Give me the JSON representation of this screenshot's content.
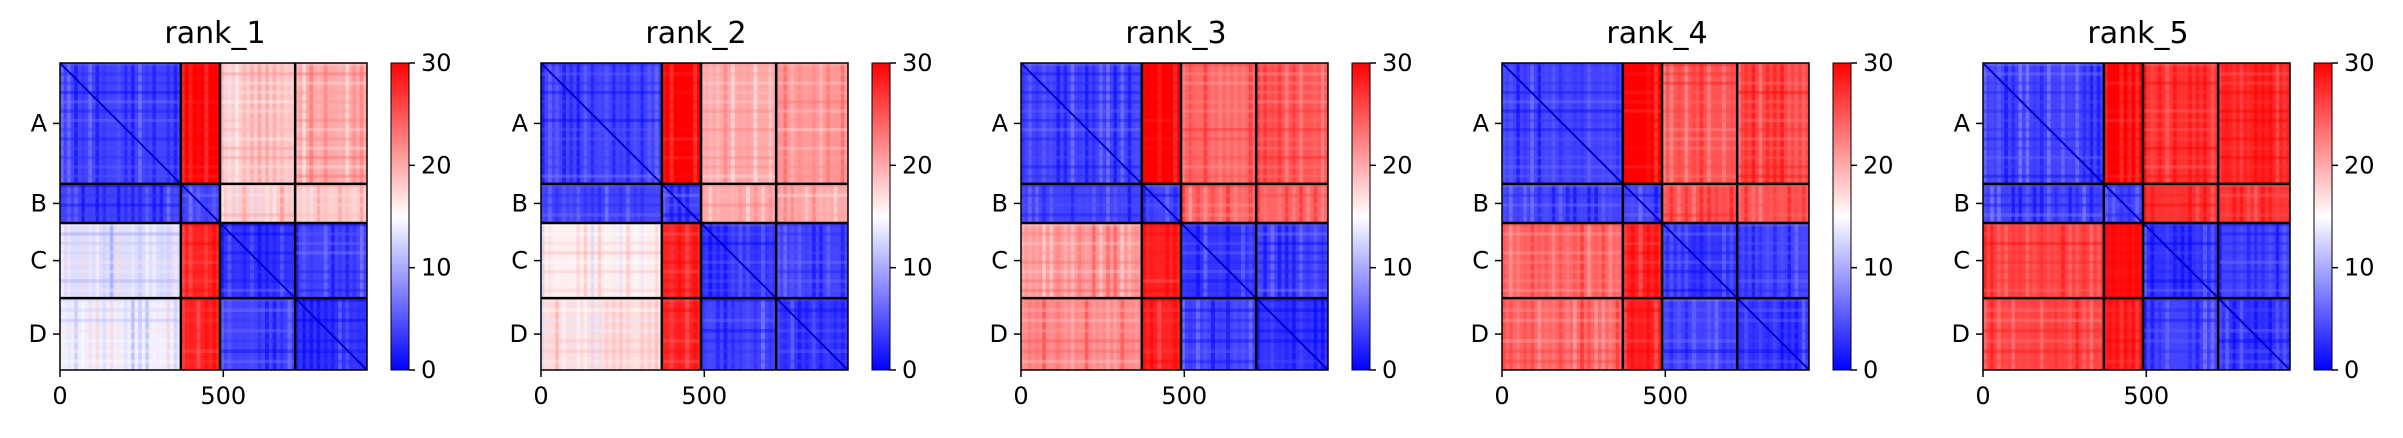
{
  "figure": {
    "panels": [
      {
        "title": "rank_1"
      },
      {
        "title": "rank_2"
      },
      {
        "title": "rank_3"
      },
      {
        "title": "rank_4"
      },
      {
        "title": "rank_5"
      }
    ]
  },
  "chart_data": [
    {
      "type": "heatmap",
      "title": "rank_1",
      "x_ticks": [
        0,
        500
      ],
      "y_tick_labels": [
        "A",
        "B",
        "C",
        "D"
      ],
      "chain_boundaries": [
        0,
        370,
        490,
        720,
        940
      ],
      "colorbar": {
        "range": [
          0,
          30
        ],
        "ticks": [
          0,
          10,
          20,
          30
        ],
        "colormap": "bwr"
      },
      "block_pae": [
        [
          4,
          30,
          18,
          20
        ],
        [
          4,
          4,
          18,
          18
        ],
        [
          13,
          28,
          3,
          4
        ],
        [
          14,
          28,
          4,
          3
        ]
      ],
      "xlim": [
        0,
        940
      ],
      "ylim": [
        940,
        0
      ]
    },
    {
      "type": "heatmap",
      "title": "rank_2",
      "x_ticks": [
        0,
        500
      ],
      "y_tick_labels": [
        "A",
        "B",
        "C",
        "D"
      ],
      "chain_boundaries": [
        0,
        370,
        490,
        720,
        940
      ],
      "colorbar": {
        "range": [
          0,
          30
        ],
        "ticks": [
          0,
          10,
          20,
          30
        ],
        "colormap": "bwr"
      },
      "block_pae": [
        [
          4,
          30,
          20,
          21
        ],
        [
          4,
          4,
          20,
          20
        ],
        [
          16,
          28,
          3,
          4
        ],
        [
          17,
          28,
          4,
          3
        ]
      ],
      "xlim": [
        0,
        940
      ],
      "ylim": [
        940,
        0
      ]
    },
    {
      "type": "heatmap",
      "title": "rank_3",
      "x_ticks": [
        0,
        500
      ],
      "y_tick_labels": [
        "A",
        "B",
        "C",
        "D"
      ],
      "chain_boundaries": [
        0,
        370,
        490,
        720,
        940
      ],
      "colorbar": {
        "range": [
          0,
          30
        ],
        "ticks": [
          0,
          10,
          20,
          30
        ],
        "colormap": "bwr"
      },
      "block_pae": [
        [
          4,
          30,
          24,
          25
        ],
        [
          4,
          4,
          24,
          24
        ],
        [
          21,
          28,
          3,
          4
        ],
        [
          22,
          28,
          4,
          3
        ]
      ],
      "xlim": [
        0,
        940
      ],
      "ylim": [
        940,
        0
      ]
    },
    {
      "type": "heatmap",
      "title": "rank_4",
      "x_ticks": [
        0,
        500
      ],
      "y_tick_labels": [
        "A",
        "B",
        "C",
        "D"
      ],
      "chain_boundaries": [
        0,
        370,
        490,
        720,
        940
      ],
      "colorbar": {
        "range": [
          0,
          30
        ],
        "ticks": [
          0,
          10,
          20,
          30
        ],
        "colormap": "bwr"
      },
      "block_pae": [
        [
          4,
          30,
          25,
          26
        ],
        [
          4,
          4,
          25,
          25
        ],
        [
          24,
          28,
          3,
          4
        ],
        [
          24,
          28,
          4,
          3
        ]
      ],
      "xlim": [
        0,
        940
      ],
      "ylim": [
        940,
        0
      ]
    },
    {
      "type": "heatmap",
      "title": "rank_5",
      "x_ticks": [
        0,
        500
      ],
      "y_tick_labels": [
        "A",
        "B",
        "C",
        "D"
      ],
      "chain_boundaries": [
        0,
        370,
        490,
        720,
        940
      ],
      "colorbar": {
        "range": [
          0,
          30
        ],
        "ticks": [
          0,
          10,
          20,
          30
        ],
        "colormap": "bwr"
      },
      "block_pae": [
        [
          4,
          30,
          27,
          28
        ],
        [
          4,
          4,
          27,
          27
        ],
        [
          26,
          29,
          3,
          4
        ],
        [
          26,
          29,
          4,
          3
        ]
      ],
      "xlim": [
        0,
        940
      ],
      "ylim": [
        940,
        0
      ]
    }
  ]
}
